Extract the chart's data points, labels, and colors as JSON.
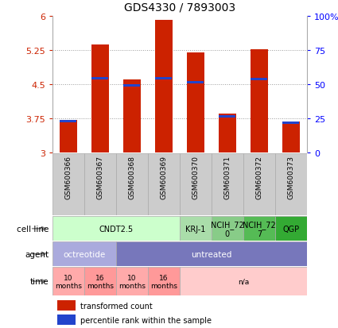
{
  "title": "GDS4330 / 7893003",
  "samples": [
    "GSM600366",
    "GSM600367",
    "GSM600368",
    "GSM600369",
    "GSM600370",
    "GSM600371",
    "GSM600372",
    "GSM600373"
  ],
  "bar_values": [
    3.7,
    5.36,
    4.6,
    5.9,
    5.2,
    3.84,
    5.26,
    3.68
  ],
  "blue_values": [
    3.68,
    4.62,
    4.46,
    4.63,
    4.53,
    3.78,
    4.6,
    3.65
  ],
  "ylim": [
    3.0,
    6.0
  ],
  "yticks": [
    3.0,
    3.75,
    4.5,
    5.25,
    6.0
  ],
  "ytick_labels": [
    "3",
    "3.75",
    "4.5",
    "5.25",
    "6"
  ],
  "y2ticks": [
    0,
    25,
    50,
    75,
    100
  ],
  "y2tick_labels": [
    "0",
    "25",
    "50",
    "75",
    "100%"
  ],
  "bar_color": "#cc2200",
  "blue_color": "#2244cc",
  "grid_color": "#999999",
  "sample_bg": "#cccccc",
  "cell_line_groups": [
    {
      "text": "CNDT2.5",
      "cols": [
        0,
        1,
        2,
        3
      ],
      "color": "#ccffcc"
    },
    {
      "text": "KRJ-1",
      "cols": [
        4
      ],
      "color": "#aaddaa"
    },
    {
      "text": "NCIH_72\n0",
      "cols": [
        5
      ],
      "color": "#88cc88"
    },
    {
      "text": "NCIH_72\n7",
      "cols": [
        6
      ],
      "color": "#55bb55"
    },
    {
      "text": "QGP",
      "cols": [
        7
      ],
      "color": "#33aa33"
    }
  ],
  "agent_groups": [
    {
      "text": "octreotide",
      "cols": [
        0,
        1
      ],
      "color": "#aaaadd"
    },
    {
      "text": "untreated",
      "cols": [
        2,
        3,
        4,
        5,
        6,
        7
      ],
      "color": "#7777bb"
    }
  ],
  "time_groups": [
    {
      "text": "10\nmonths",
      "cols": [
        0
      ],
      "color": "#ffaaaa"
    },
    {
      "text": "16\nmonths",
      "cols": [
        1
      ],
      "color": "#ff9999"
    },
    {
      "text": "10\nmonths",
      "cols": [
        2
      ],
      "color": "#ffaaaa"
    },
    {
      "text": "16\nmonths",
      "cols": [
        3
      ],
      "color": "#ff9999"
    },
    {
      "text": "n/a",
      "cols": [
        4,
        5,
        6,
        7
      ],
      "color": "#ffcccc"
    }
  ],
  "legend_red": "transformed count",
  "legend_blue": "percentile rank within the sample",
  "row_labels": [
    "cell line",
    "agent",
    "time"
  ],
  "arrow_color": "#888888"
}
